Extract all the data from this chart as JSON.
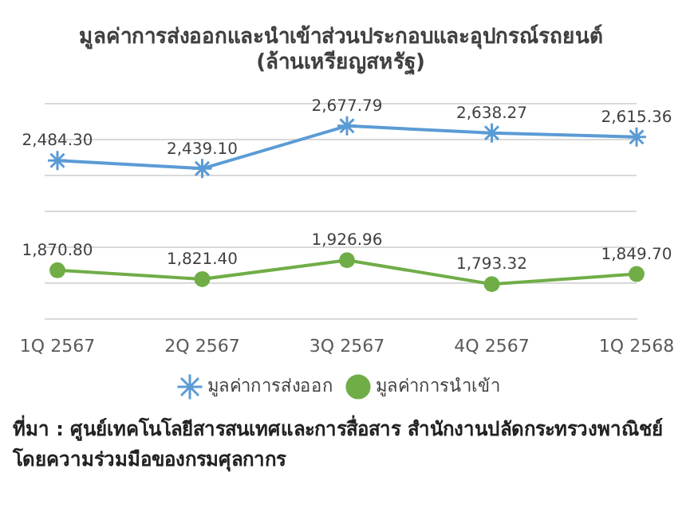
{
  "chart_data": {
    "type": "line",
    "title": "มูลค่าการส่งออกและนำเข้าส่วนประกอบและอุปกรณ์รถยนต์",
    "subtitle": "(ล้านเหรียญสหรัฐ)",
    "categories": [
      "1Q 2567",
      "2Q 2567",
      "3Q 2567",
      "4Q 2567",
      "1Q 2568"
    ],
    "series": [
      {
        "name": "มูลค่าการส่งออก",
        "color": "#5b9bd5",
        "marker": "cross",
        "values": [
          2484.3,
          2439.1,
          2677.79,
          2638.27,
          2615.36
        ],
        "value_labels": [
          "2,484.30",
          "2,439.10",
          "2,677.79",
          "2,638.27",
          "2,615.36"
        ]
      },
      {
        "name": "มูลค่าการนำเข้า",
        "color": "#70ad47",
        "marker": "circle",
        "values": [
          1870.8,
          1821.4,
          1926.96,
          1793.32,
          1849.7
        ],
        "value_labels": [
          "1,870.80",
          "1,821.40",
          "1,926.96",
          "1,793.32",
          "1,849.70"
        ]
      }
    ],
    "relative": false,
    "grid": "y",
    "legend": "bottom",
    "tick_labels": "x",
    "line_style": "solid",
    "annotations": [
      "ที่มา : ศูนย์เทคโนโลยีสารสนเทศและการสื่อสาร สำนักงานปลัดกระทรวงพาณิชย์ โดยความร่วมมือของกรมศุลกากร"
    ]
  }
}
